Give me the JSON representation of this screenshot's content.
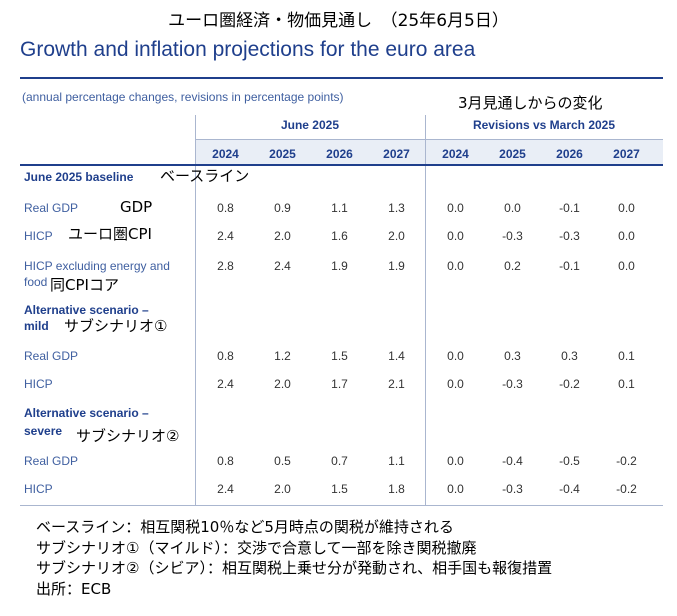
{
  "header": {
    "jp_title": "ユーロ圏経済・物価見通し　（25年6月5日）",
    "en_title": "Growth and inflation projections for the euro area",
    "subtitle": "(annual percentage changes, revisions in percentage points)",
    "revisions_note_jp": "3月見通しからの変化"
  },
  "table": {
    "group_june": "June 2025",
    "group_rev": "Revisions vs March 2025",
    "years": [
      "2024",
      "2025",
      "2026",
      "2027"
    ],
    "sections": [
      {
        "title": "June 2025 baseline",
        "title_jp": "ベースライン",
        "rows": [
          {
            "label": "Real GDP",
            "label_jp": "GDP",
            "june": [
              "0.8",
              "0.9",
              "1.1",
              "1.3"
            ],
            "rev": [
              "0.0",
              "0.0",
              "-0.1",
              "0.0"
            ]
          },
          {
            "label": "HICP",
            "label_jp": "ユーロ圏CPI",
            "june": [
              "2.4",
              "2.0",
              "1.6",
              "2.0"
            ],
            "rev": [
              "0.0",
              "-0.3",
              "-0.3",
              "0.0"
            ]
          },
          {
            "label_line1": "HICP excluding energy and",
            "label_line2": "food",
            "label_jp": "同CPIコア",
            "june": [
              "2.8",
              "2.4",
              "1.9",
              "1.9"
            ],
            "rev": [
              "0.0",
              "0.2",
              "-0.1",
              "0.0"
            ]
          }
        ]
      },
      {
        "title_line1": "Alternative scenario –",
        "title_line2": "mild",
        "title_jp": "サブシナリオ①",
        "rows": [
          {
            "label": "Real GDP",
            "june": [
              "0.8",
              "1.2",
              "1.5",
              "1.4"
            ],
            "rev": [
              "0.0",
              "0.3",
              "0.3",
              "0.1"
            ]
          },
          {
            "label": "HICP",
            "june": [
              "2.4",
              "2.0",
              "1.7",
              "2.1"
            ],
            "rev": [
              "0.0",
              "-0.3",
              "-0.2",
              "0.1"
            ]
          }
        ]
      },
      {
        "title_line1": "Alternative scenario –",
        "title_line2": "severe",
        "title_jp": "サブシナリオ②",
        "rows": [
          {
            "label": "Real GDP",
            "june": [
              "0.8",
              "0.5",
              "0.7",
              "1.1"
            ],
            "rev": [
              "0.0",
              "-0.4",
              "-0.5",
              "-0.2"
            ]
          },
          {
            "label": "HICP",
            "june": [
              "2.4",
              "2.0",
              "1.5",
              "1.8"
            ],
            "rev": [
              "0.0",
              "-0.3",
              "-0.4",
              "-0.2"
            ]
          }
        ]
      }
    ]
  },
  "notes": [
    "ベースライン：相互関税10％など5月時点の関税が維持される",
    "サブシナリオ①（マイルド）：交渉で合意して一部を除き関税撤廃",
    "サブシナリオ②（シビア）：相互関税上乗せ分が発動され、相手国も報復措置",
    "出所：ECB"
  ]
}
